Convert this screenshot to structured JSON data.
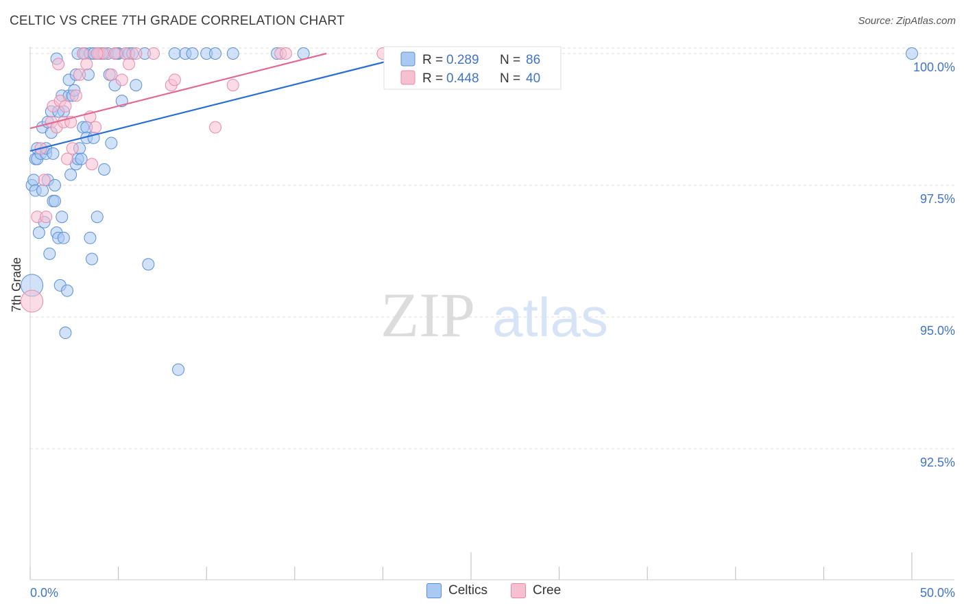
{
  "header": {
    "title": "CELTIC VS CREE 7TH GRADE CORRELATION CHART",
    "source": "Source: ZipAtlas.com"
  },
  "watermark": {
    "zip": "ZIP",
    "atlas": "atlas"
  },
  "colors": {
    "celtics_fill": "#a9c8f2",
    "celtics_stroke": "#5b8fd6",
    "celtics_line": "#2a6fcf",
    "cree_fill": "#f7c0d1",
    "cree_stroke": "#e78aa8",
    "cree_line": "#e06a92",
    "tick_label": "#3f74c9",
    "grid": "#dddddd"
  },
  "legend": {
    "celtics": {
      "r_label": "R = ",
      "r_value": "0.289",
      "n_label": "N = ",
      "n_value": "86"
    },
    "cree": {
      "r_label": "R = ",
      "r_value": "0.448",
      "n_label": "N = ",
      "n_value": "40"
    }
  },
  "chart_data": {
    "type": "scatter",
    "title": "CELTIC VS CREE 7TH GRADE CORRELATION CHART",
    "xlabel": "",
    "ylabel": "7th Grade",
    "xlim": [
      0,
      50
    ],
    "ylim": [
      90.0,
      100.2
    ],
    "x_tick_labels": [
      "0.0%",
      "50.0%"
    ],
    "y_ticks": [
      {
        "value": 100.0,
        "label": "100.0%"
      },
      {
        "value": 97.5,
        "label": "97.5%"
      },
      {
        "value": 95.0,
        "label": "95.0%"
      },
      {
        "value": 92.5,
        "label": "92.5%"
      }
    ],
    "grid": true,
    "legend_position": "top-center",
    "series": [
      {
        "name": "Celtics",
        "r": 0.289,
        "n": 86,
        "trend": {
          "x": [
            0,
            22.0
          ],
          "y": [
            98.15,
            100.0
          ]
        },
        "points": [
          [
            0.1,
            95.6
          ],
          [
            0.1,
            97.5
          ],
          [
            0.2,
            97.6
          ],
          [
            0.3,
            97.4
          ],
          [
            0.3,
            98.0
          ],
          [
            0.4,
            98.0
          ],
          [
            0.4,
            98.2
          ],
          [
            0.5,
            96.6
          ],
          [
            0.6,
            98.1
          ],
          [
            0.7,
            97.4
          ],
          [
            0.7,
            98.6
          ],
          [
            0.8,
            96.8
          ],
          [
            0.9,
            98.1
          ],
          [
            0.9,
            98.2
          ],
          [
            1.0,
            98.7
          ],
          [
            1.0,
            97.6
          ],
          [
            1.1,
            96.2
          ],
          [
            1.2,
            98.9
          ],
          [
            1.2,
            98.5
          ],
          [
            1.3,
            98.1
          ],
          [
            1.3,
            97.2
          ],
          [
            1.4,
            97.5
          ],
          [
            1.4,
            97.2
          ],
          [
            1.5,
            96.6
          ],
          [
            1.5,
            99.9
          ],
          [
            1.6,
            96.5
          ],
          [
            1.7,
            95.6
          ],
          [
            1.8,
            99.2
          ],
          [
            1.8,
            96.9
          ],
          [
            1.9,
            98.9
          ],
          [
            1.9,
            96.5
          ],
          [
            2.0,
            94.7
          ],
          [
            2.1,
            95.5
          ],
          [
            2.2,
            99.5
          ],
          [
            2.2,
            99.2
          ],
          [
            2.3,
            97.7
          ],
          [
            2.4,
            99.2
          ],
          [
            2.5,
            99.3
          ],
          [
            2.6,
            99.6
          ],
          [
            2.6,
            97.9
          ],
          [
            2.7,
            98.0
          ],
          [
            2.7,
            100.0
          ],
          [
            2.8,
            98.2
          ],
          [
            3.0,
            100.0
          ],
          [
            3.0,
            98.6
          ],
          [
            3.1,
            100.0
          ],
          [
            3.2,
            98.6
          ],
          [
            3.2,
            98.4
          ],
          [
            3.3,
            99.6
          ],
          [
            3.4,
            100.0
          ],
          [
            3.4,
            96.5
          ],
          [
            3.5,
            96.1
          ],
          [
            3.6,
            98.4
          ],
          [
            3.8,
            100.0
          ],
          [
            3.8,
            96.9
          ],
          [
            4.0,
            100.0
          ],
          [
            4.2,
            97.8
          ],
          [
            4.4,
            100.0
          ],
          [
            4.5,
            99.6
          ],
          [
            4.6,
            98.3
          ],
          [
            4.8,
            99.4
          ],
          [
            5.0,
            100.0
          ],
          [
            5.2,
            99.1
          ],
          [
            5.4,
            100.0
          ],
          [
            5.6,
            100.0
          ],
          [
            5.8,
            100.0
          ],
          [
            6.0,
            99.4
          ],
          [
            6.5,
            100.0
          ],
          [
            6.7,
            96.0
          ],
          [
            8.2,
            100.0
          ],
          [
            8.4,
            94.0
          ],
          [
            8.8,
            100.0
          ],
          [
            9.2,
            100.0
          ],
          [
            10.0,
            100.0
          ],
          [
            10.5,
            100.0
          ],
          [
            11.5,
            100.0
          ],
          [
            14.0,
            100.0
          ],
          [
            15.5,
            100.0
          ],
          [
            21.0,
            100.0
          ],
          [
            24.0,
            100.0
          ],
          [
            1.6,
            98.9
          ],
          [
            2.9,
            98.0
          ],
          [
            3.6,
            100.0
          ],
          [
            4.1,
            100.0
          ],
          [
            4.9,
            100.0
          ],
          [
            50.0,
            100.0
          ]
        ]
      },
      {
        "name": "Cree",
        "r": 0.448,
        "n": 40,
        "trend": {
          "x": [
            0,
            16.8
          ],
          "y": [
            98.58,
            100.0
          ]
        },
        "points": [
          [
            0.1,
            95.3
          ],
          [
            0.4,
            96.9
          ],
          [
            0.6,
            98.2
          ],
          [
            0.8,
            97.6
          ],
          [
            0.9,
            96.9
          ],
          [
            1.2,
            98.7
          ],
          [
            1.3,
            99.0
          ],
          [
            1.5,
            98.6
          ],
          [
            1.6,
            99.8
          ],
          [
            1.7,
            99.1
          ],
          [
            1.9,
            98.7
          ],
          [
            2.0,
            99.0
          ],
          [
            2.1,
            98.0
          ],
          [
            2.3,
            98.7
          ],
          [
            2.4,
            98.2
          ],
          [
            2.6,
            99.2
          ],
          [
            2.8,
            99.6
          ],
          [
            3.0,
            100.0
          ],
          [
            3.2,
            99.8
          ],
          [
            3.4,
            98.8
          ],
          [
            3.5,
            97.9
          ],
          [
            3.7,
            98.6
          ],
          [
            3.9,
            100.0
          ],
          [
            4.2,
            100.0
          ],
          [
            4.6,
            99.6
          ],
          [
            4.8,
            100.0
          ],
          [
            5.2,
            99.5
          ],
          [
            5.4,
            100.0
          ],
          [
            5.6,
            99.8
          ],
          [
            6.0,
            100.0
          ],
          [
            7.0,
            100.0
          ],
          [
            8.0,
            99.4
          ],
          [
            8.2,
            99.5
          ],
          [
            10.5,
            98.6
          ],
          [
            11.5,
            99.4
          ],
          [
            14.2,
            100.0
          ],
          [
            14.5,
            100.0
          ],
          [
            20.0,
            100.0
          ],
          [
            28.0,
            100.0
          ],
          [
            3.8,
            100.0
          ]
        ]
      }
    ]
  }
}
